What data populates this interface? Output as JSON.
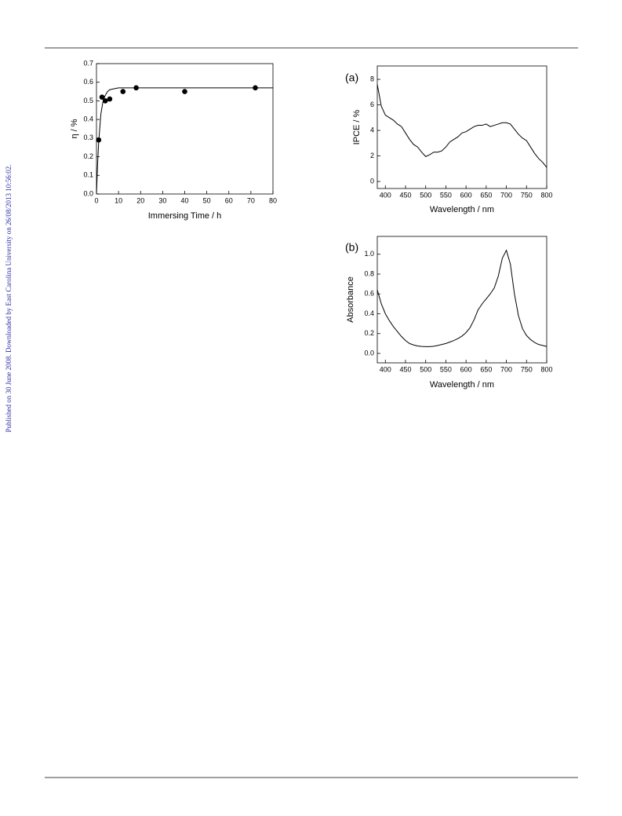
{
  "side_note": "Published on 30 June 2008. Downloaded by East Carolina University on 26/08/2013 10:56:02.",
  "chart_data": [
    {
      "type": "scatter",
      "x_label": "Immersing Time / h",
      "y_label": "η / %",
      "color": "#000000",
      "x": [
        1,
        2.5,
        4,
        6,
        12,
        18,
        40,
        72
      ],
      "values": [
        0.29,
        0.52,
        0.5,
        0.51,
        0.55,
        0.57,
        0.55,
        0.57
      ],
      "fit": {
        "x": [
          0,
          0.5,
          1,
          2,
          3,
          4,
          5,
          6,
          8,
          10,
          15,
          20,
          30,
          40,
          60,
          80
        ],
        "values": [
          0,
          0.16,
          0.28,
          0.43,
          0.5,
          0.53,
          0.55,
          0.56,
          0.565,
          0.57,
          0.57,
          0.57,
          0.57,
          0.57,
          0.57,
          0.57
        ]
      },
      "xlim": [
        0,
        80
      ],
      "ylim": [
        0,
        0.7
      ],
      "xticks": [
        0,
        10,
        20,
        30,
        40,
        50,
        60,
        70,
        80
      ],
      "yticks": [
        {
          "value": 0,
          "label": "0.0"
        },
        0.1,
        0.2,
        0.3,
        0.4,
        0.5,
        0.6,
        0.7
      ]
    },
    {
      "type": "line",
      "panel_label": "(a)",
      "x_label": "Wavelength / nm",
      "y_label": "IPCE / %",
      "color": "#000000",
      "x": [
        380,
        390,
        400,
        410,
        420,
        430,
        440,
        450,
        460,
        470,
        480,
        490,
        500,
        510,
        520,
        530,
        540,
        550,
        560,
        570,
        580,
        590,
        600,
        610,
        620,
        630,
        640,
        650,
        660,
        670,
        680,
        690,
        700,
        710,
        720,
        730,
        740,
        750,
        760,
        770,
        780,
        790,
        800
      ],
      "values": [
        7.6,
        5.9,
        5.2,
        5.0,
        4.8,
        4.5,
        4.3,
        3.8,
        3.3,
        2.9,
        2.7,
        2.3,
        1.95,
        2.1,
        2.3,
        2.3,
        2.4,
        2.7,
        3.1,
        3.3,
        3.5,
        3.8,
        3.9,
        4.1,
        4.3,
        4.4,
        4.4,
        4.5,
        4.3,
        4.4,
        4.5,
        4.6,
        4.6,
        4.5,
        4.1,
        3.7,
        3.4,
        3.2,
        2.7,
        2.2,
        1.8,
        1.5,
        1.1
      ],
      "xlim": [
        380,
        800
      ],
      "ylim": [
        -0.55,
        9.05
      ],
      "xticks": [
        400,
        450,
        500,
        550,
        600,
        650,
        700,
        750,
        800
      ],
      "yticks": [
        0,
        2,
        4,
        6,
        8
      ]
    },
    {
      "type": "line",
      "panel_label": "(b)",
      "x_label": "Wavelength / nm",
      "y_label": "Absorbance",
      "color": "#000000",
      "x": [
        380,
        390,
        400,
        410,
        420,
        430,
        440,
        450,
        460,
        470,
        480,
        490,
        500,
        510,
        520,
        530,
        540,
        550,
        560,
        570,
        580,
        590,
        600,
        610,
        620,
        630,
        640,
        650,
        660,
        670,
        680,
        690,
        700,
        710,
        720,
        730,
        740,
        750,
        760,
        770,
        780,
        790,
        800
      ],
      "values": [
        0.64,
        0.5,
        0.4,
        0.33,
        0.27,
        0.22,
        0.17,
        0.13,
        0.1,
        0.085,
        0.075,
        0.07,
        0.068,
        0.068,
        0.072,
        0.08,
        0.09,
        0.1,
        0.115,
        0.13,
        0.15,
        0.175,
        0.21,
        0.26,
        0.34,
        0.44,
        0.5,
        0.55,
        0.6,
        0.66,
        0.78,
        0.96,
        1.04,
        0.9,
        0.6,
        0.38,
        0.25,
        0.18,
        0.14,
        0.11,
        0.09,
        0.08,
        0.07
      ],
      "xlim": [
        380,
        800
      ],
      "ylim": [
        -0.095,
        1.18
      ],
      "xticks": [
        400,
        450,
        500,
        550,
        600,
        650,
        700,
        750,
        800
      ],
      "yticks": [
        {
          "value": 0,
          "label": "0.0"
        },
        0.2,
        0.4,
        0.6,
        0.8,
        {
          "value": 1,
          "label": "1.0"
        }
      ]
    }
  ]
}
